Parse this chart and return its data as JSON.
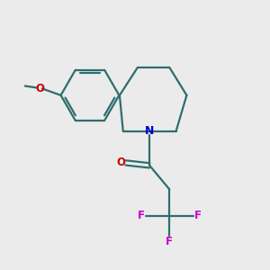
{
  "background_color": "#ebebeb",
  "bond_color": "#2d6e6e",
  "N_color": "#0000cc",
  "O_color": "#cc0000",
  "F_color": "#cc00cc",
  "line_width": 1.6,
  "figsize": [
    3.0,
    3.0
  ],
  "dpi": 100,
  "xlim": [
    0,
    10
  ],
  "ylim": [
    0,
    10
  ]
}
